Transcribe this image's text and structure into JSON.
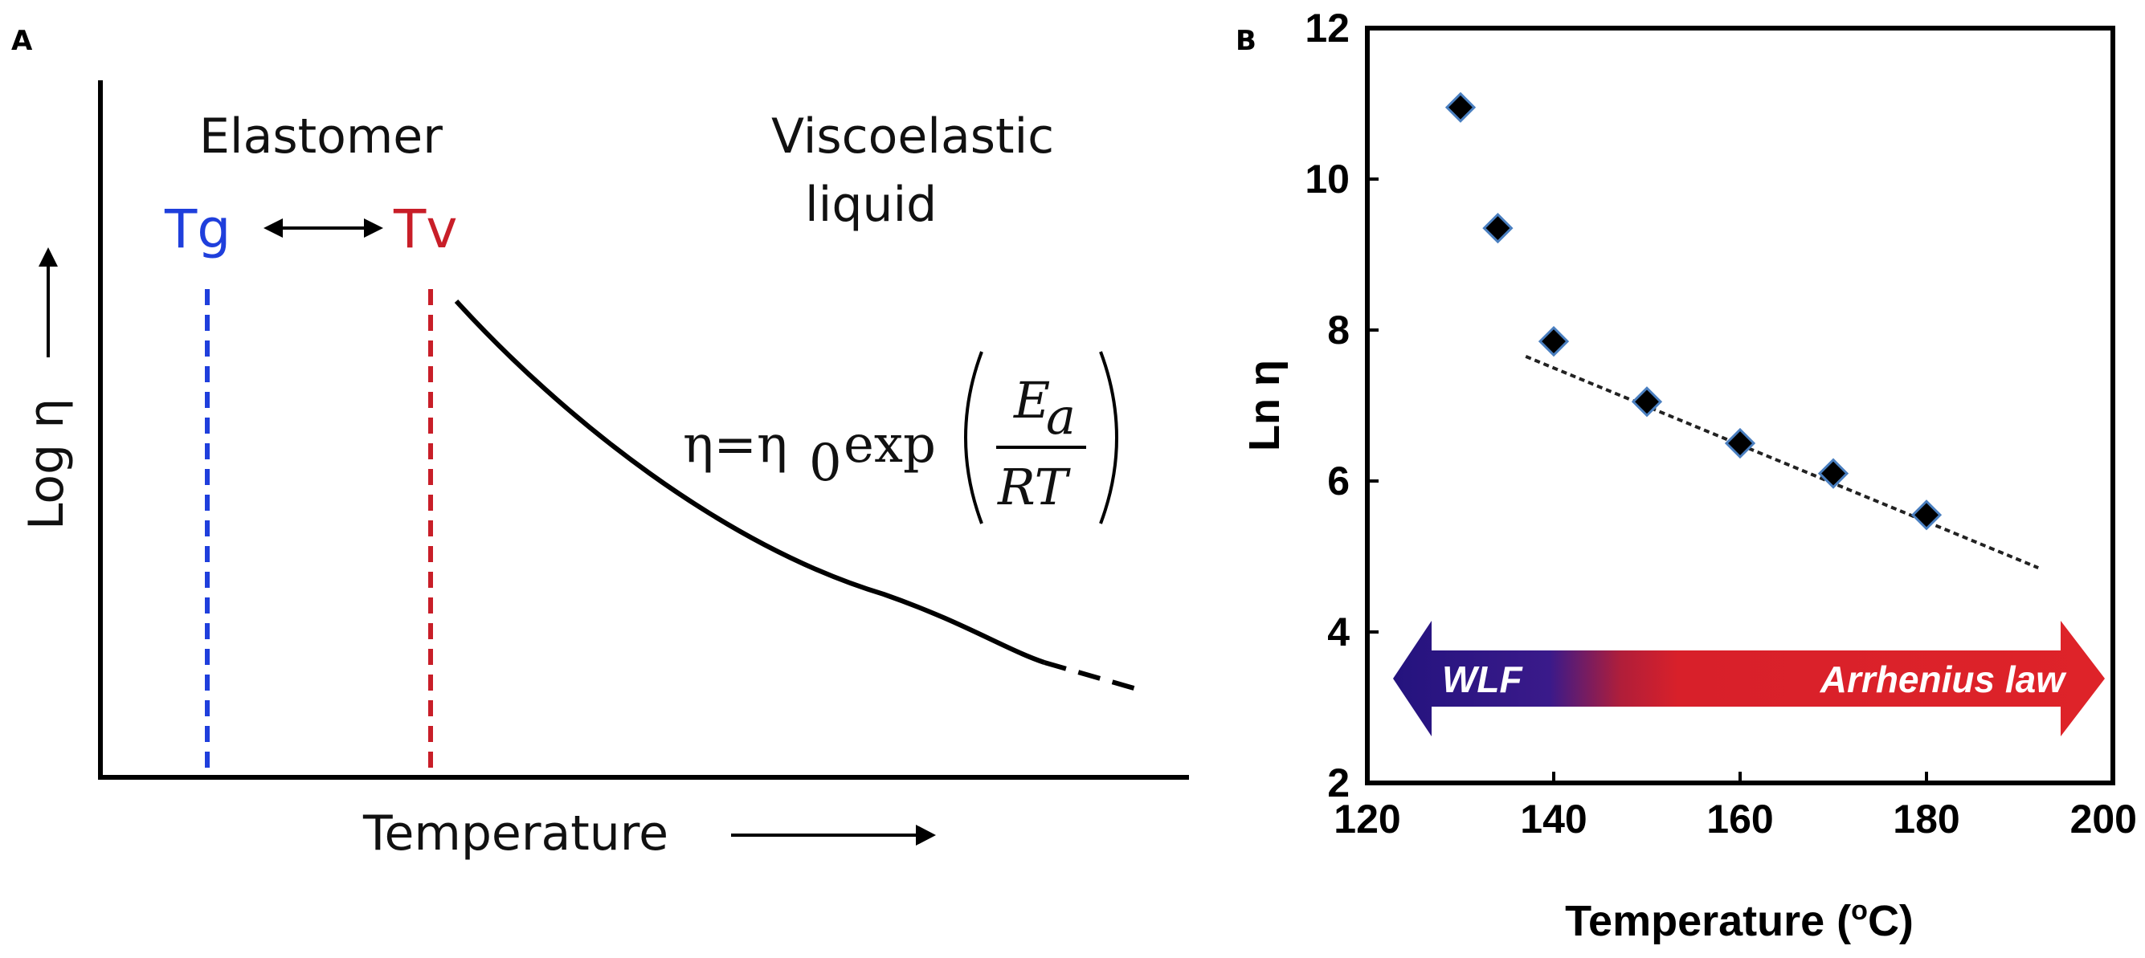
{
  "panels": {
    "a": {
      "letter": "A",
      "region_left": "Elastomer",
      "region_right_line1": "Viscoelastic",
      "region_right_line2": "liquid",
      "tg_label": "Tg",
      "tv_label": "Tv",
      "ylabel": "Log η",
      "xlabel": "Temperature",
      "equation": {
        "lhs": "η=η",
        "sub0": "0",
        "func": "exp",
        "numerator": "E",
        "num_sub": "a",
        "denominator": "RT"
      },
      "colors": {
        "tg": "#1f3fdc",
        "tv": "#c81e28",
        "curve": "#000000"
      }
    },
    "b": {
      "letter": "B",
      "arrow_left_label": "WLF",
      "arrow_right_label": "Arrhenius law",
      "colors": {
        "marker": "#000000",
        "marker_edge": "#4a7fc0",
        "wlf": "#2b1a8a",
        "arrhenius": "#d8202a"
      }
    }
  },
  "chart_data": [
    {
      "type": "line",
      "panel": "A",
      "title": "",
      "xlabel": "Temperature",
      "ylabel": "Log η",
      "annotations": [
        "Elastomer",
        "Viscoelastic liquid",
        "Tg",
        "Tv"
      ],
      "note": "schematic curve, no numeric axes"
    },
    {
      "type": "scatter",
      "panel": "B",
      "xlabel": "Temperature (oC)",
      "ylabel": "Ln η",
      "xlim": [
        120,
        200
      ],
      "ylim": [
        2,
        12
      ],
      "xticks": [
        120,
        140,
        160,
        180,
        200
      ],
      "yticks": [
        2,
        4,
        6,
        8,
        10,
        12
      ],
      "series": [
        {
          "x": [
            130,
            134,
            140,
            150,
            160,
            170,
            180
          ],
          "y": [
            10.95,
            9.35,
            7.85,
            7.05,
            6.5,
            6.1,
            5.55
          ]
        }
      ],
      "fit_line": {
        "x": [
          137,
          192
        ],
        "y": [
          7.65,
          4.85
        ]
      },
      "grid": false
    }
  ]
}
